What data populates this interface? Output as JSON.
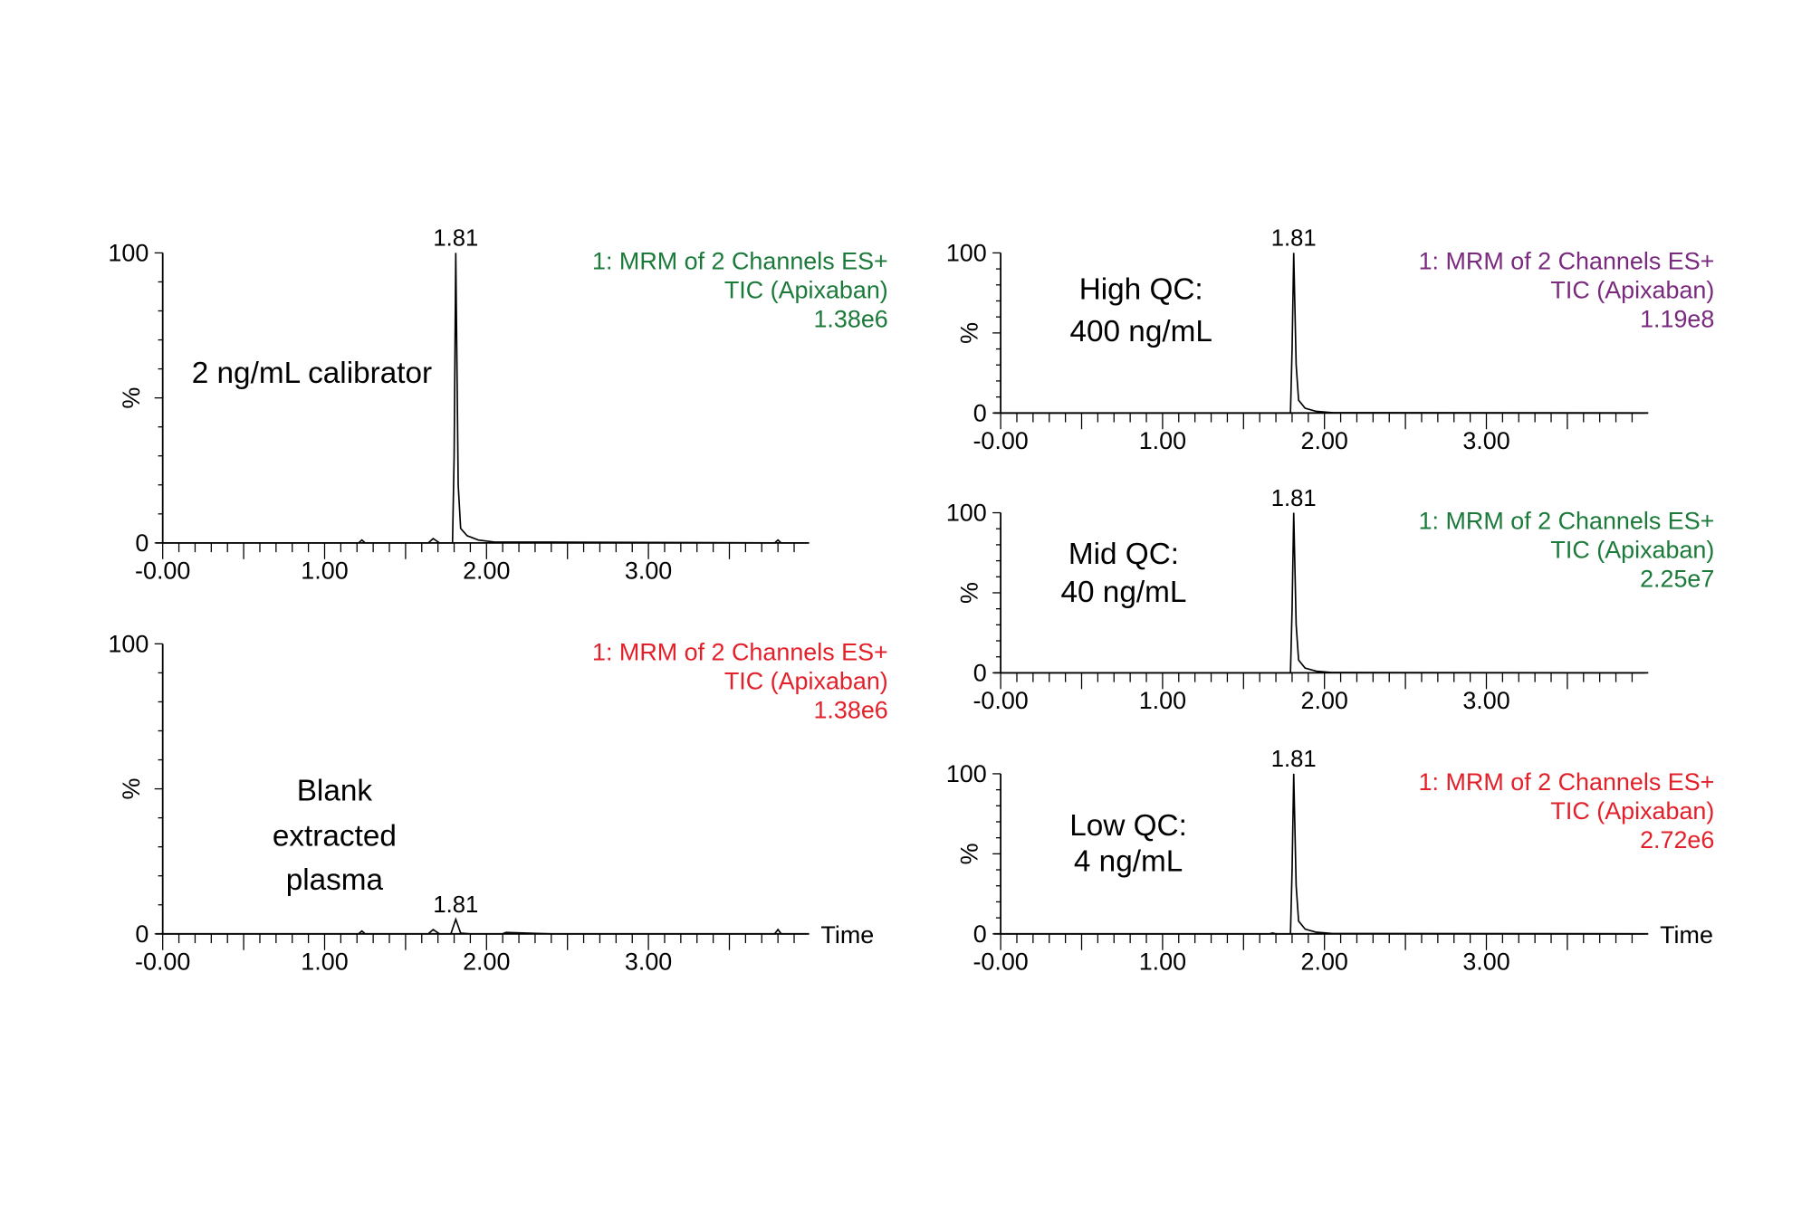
{
  "chart_data": [
    {
      "type": "line",
      "sample_label": [
        "2 ng/mL calibrator"
      ],
      "header": [
        "1: MRM of 2 Channels ES+",
        "TIC (Apixaban)",
        "1.38e6"
      ],
      "header_color": "#1b7a3a",
      "peak_label": "1.81",
      "ylabel": "%",
      "xlabel": "",
      "xlim": [
        0,
        4.0
      ],
      "ylim": [
        0,
        100
      ],
      "x_tick_labels": [
        "-0.00",
        "1.00",
        "2.00",
        "3.00"
      ],
      "y_tick_labels": [
        "0",
        "100"
      ],
      "x": [
        0,
        1.21,
        1.23,
        1.25,
        1.64,
        1.67,
        1.71,
        1.79,
        1.8,
        1.81,
        1.825,
        1.84,
        1.88,
        1.95,
        2.05,
        2.4,
        3.78,
        3.8,
        3.82,
        3.98
      ],
      "y": [
        0,
        0,
        1,
        0,
        0,
        1.5,
        0,
        0,
        30,
        100,
        20,
        5,
        2.5,
        1,
        0.3,
        0.3,
        0,
        1,
        0,
        0
      ]
    },
    {
      "type": "line",
      "sample_label": [
        "Blank",
        "extracted",
        "plasma"
      ],
      "header": [
        "1: MRM of 2 Channels ES+",
        "TIC (Apixaban)",
        "1.38e6"
      ],
      "header_color": "#e3202a",
      "peak_label": "1.81",
      "ylabel": "%",
      "xlabel": "Time",
      "xlim": [
        0,
        4.0
      ],
      "ylim": [
        0,
        100
      ],
      "x_tick_labels": [
        "-0.00",
        "1.00",
        "2.00",
        "3.00"
      ],
      "y_tick_labels": [
        "0",
        "100"
      ],
      "x": [
        0,
        1.21,
        1.23,
        1.25,
        1.64,
        1.67,
        1.71,
        1.78,
        1.81,
        1.84,
        1.9,
        2.1,
        2.12,
        2.4,
        3.78,
        3.8,
        3.82,
        3.98
      ],
      "y": [
        0,
        0,
        1,
        0,
        0,
        1.5,
        0,
        0,
        5,
        0.3,
        0,
        0,
        0.5,
        0,
        0,
        1.5,
        0,
        0
      ]
    },
    {
      "type": "line",
      "sample_label": [
        "High QC:",
        "400 ng/mL"
      ],
      "header": [
        "1: MRM of 2 Channels ES+",
        "TIC (Apixaban)",
        "1.19e8"
      ],
      "header_color": "#7a2a7e",
      "peak_label": "1.81",
      "ylabel": "%",
      "xlabel": "",
      "xlim": [
        0,
        4.0
      ],
      "ylim": [
        0,
        100
      ],
      "x_tick_labels": [
        "-0.00",
        "1.00",
        "2.00",
        "3.00"
      ],
      "y_tick_labels": [
        "0",
        "100"
      ],
      "x": [
        0,
        1.79,
        1.8,
        1.81,
        1.825,
        1.84,
        1.88,
        1.95,
        2.05,
        3.98
      ],
      "y": [
        0,
        0,
        40,
        100,
        30,
        8,
        3,
        1,
        0.2,
        0
      ]
    },
    {
      "type": "line",
      "sample_label": [
        "Mid QC:",
        "40 ng/mL"
      ],
      "header": [
        "1: MRM of 2 Channels ES+",
        "TIC (Apixaban)",
        "2.25e7"
      ],
      "header_color": "#1b7a3a",
      "peak_label": "1.81",
      "ylabel": "%",
      "xlabel": "",
      "xlim": [
        0,
        4.0
      ],
      "ylim": [
        0,
        100
      ],
      "x_tick_labels": [
        "-0.00",
        "1.00",
        "2.00",
        "3.00"
      ],
      "y_tick_labels": [
        "0",
        "100"
      ],
      "x": [
        0,
        1.79,
        1.8,
        1.81,
        1.825,
        1.84,
        1.88,
        1.95,
        2.05,
        3.98
      ],
      "y": [
        0,
        0,
        40,
        100,
        30,
        8,
        3,
        1,
        0.2,
        0
      ]
    },
    {
      "type": "line",
      "sample_label": [
        "Low QC:",
        "4 ng/mL"
      ],
      "header": [
        "1: MRM of 2 Channels ES+",
        "TIC (Apixaban)",
        "2.72e6"
      ],
      "header_color": "#e3202a",
      "peak_label": "1.81",
      "ylabel": "%",
      "xlabel": "Time",
      "xlim": [
        0,
        4.0
      ],
      "ylim": [
        0,
        100
      ],
      "x_tick_labels": [
        "-0.00",
        "1.00",
        "2.00",
        "3.00"
      ],
      "y_tick_labels": [
        "0",
        "100"
      ],
      "x": [
        0,
        1.66,
        1.68,
        1.7,
        1.79,
        1.8,
        1.81,
        1.825,
        1.84,
        1.88,
        1.95,
        2.05,
        3.98
      ],
      "y": [
        0,
        0,
        0.5,
        0,
        0,
        40,
        100,
        30,
        8,
        3,
        1,
        0.2,
        0
      ]
    }
  ]
}
